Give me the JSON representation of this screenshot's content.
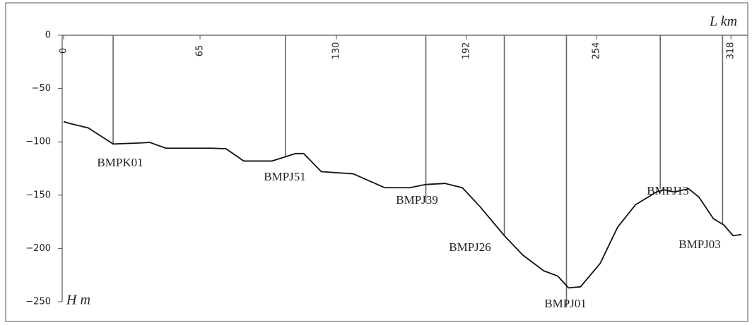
{
  "chart_data": {
    "type": "line",
    "x_label": "L km",
    "y_label": "H m",
    "xlim": [
      0,
      326
    ],
    "ylim": [
      -250,
      0
    ],
    "xticks": [
      0,
      65,
      130,
      192,
      254,
      318
    ],
    "yticks": [
      {
        "value": 0,
        "label": "0"
      },
      {
        "value": -50,
        "label": "−50"
      },
      {
        "value": -100,
        "label": "−100"
      },
      {
        "value": -150,
        "label": "−150"
      },
      {
        "value": -200,
        "label": "−200"
      },
      {
        "value": -250,
        "label": "−250"
      }
    ],
    "series": [
      {
        "color": "#111111",
        "x": [
          0,
          3.4,
          11.8,
          23.6,
          37,
          41,
          48.8,
          70.7,
          77.4,
          85.8,
          99.3,
          105.7,
          110.4,
          114.4,
          122.8,
          138,
          153,
          165,
          172.6,
          181.7,
          190,
          198.5,
          210,
          218.7,
          228.8,
          235.5,
          240.6,
          246.3,
          255.7,
          264,
          272.5,
          282.6,
          286,
          291,
          297.8,
          302.8,
          309.6,
          314.6,
          319,
          323
        ],
        "values": [
          -81,
          -83,
          -87,
          -102,
          -101,
          -100.5,
          -106,
          -106,
          -106.5,
          -118,
          -118,
          -114,
          -111,
          -111,
          -128,
          -130,
          -143,
          -143,
          -140,
          -139,
          -143,
          -161,
          -188,
          -206,
          -221,
          -226,
          -237,
          -236,
          -214,
          -180,
          -159,
          -147,
          -145,
          -147,
          -144,
          -152,
          -172,
          -178,
          -188,
          -187
        ]
      }
    ],
    "wells": [
      {
        "name": "BMPK01",
        "x": 23.6,
        "depth": -102
      },
      {
        "name": "BMPJ51",
        "x": 105.7,
        "depth": -114
      },
      {
        "name": "BMPJ39",
        "x": 172.6,
        "depth": -157
      },
      {
        "name": "BMPJ26",
        "x": 210,
        "depth": -188
      },
      {
        "name": "BMPJ01",
        "x": 239.6,
        "depth": -255
      },
      {
        "name": "BMPJ13",
        "x": 284.3,
        "depth": -144
      },
      {
        "name": "BMPJ03",
        "x": 314,
        "depth": -177
      }
    ]
  }
}
